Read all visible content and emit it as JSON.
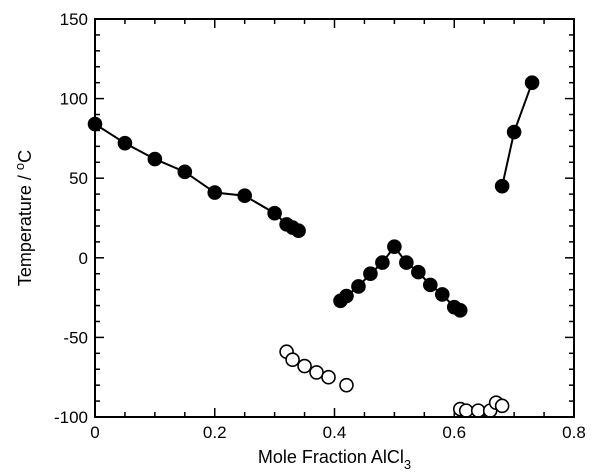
{
  "chart_data": {
    "type": "scatter",
    "title": "",
    "xlabel": {
      "main": "Mole Fraction AlCl",
      "sub": "3"
    },
    "ylabel": {
      "main": "Temperature / ",
      "sup": "o",
      "tail": "C"
    },
    "xlim": [
      0,
      0.8
    ],
    "ylim": [
      -100,
      150
    ],
    "x_ticks": [
      0,
      0.2,
      0.4,
      0.6,
      0.8
    ],
    "x_tick_labels": [
      "0",
      "0.2",
      "0.4",
      "0.6",
      "0.8"
    ],
    "y_ticks": [
      -100,
      -50,
      0,
      50,
      100,
      150
    ],
    "y_tick_labels": [
      "-100",
      "-50",
      "0",
      "50",
      "100",
      "150"
    ],
    "grid": false,
    "series": [
      {
        "marker": "filled-circle",
        "connected": true,
        "x": [
          0,
          0.05,
          0.1,
          0.15,
          0.2,
          0.25,
          0.3,
          0.32,
          0.33,
          0.34
        ],
        "y": [
          84,
          72,
          62,
          54,
          41,
          39,
          28,
          21,
          19,
          17
        ]
      },
      {
        "marker": "filled-circle",
        "connected": true,
        "x": [
          0.41,
          0.42,
          0.44,
          0.46,
          0.48,
          0.5,
          0.52,
          0.54,
          0.56,
          0.58,
          0.6,
          0.61
        ],
        "y": [
          -27,
          -24,
          -18,
          -10,
          -3,
          7,
          -3,
          -9,
          -17,
          -23,
          -31,
          -33
        ]
      },
      {
        "marker": "filled-circle",
        "connected": true,
        "x": [
          0.68,
          0.7,
          0.73
        ],
        "y": [
          45,
          79,
          110
        ]
      },
      {
        "marker": "open-circle",
        "connected": false,
        "x": [
          0.32,
          0.33,
          0.35,
          0.37,
          0.39,
          0.42
        ],
        "y": [
          -59,
          -64,
          -68,
          -72,
          -75,
          -80
        ]
      },
      {
        "marker": "open-circle",
        "connected": false,
        "x": [
          0.61,
          0.62,
          0.64,
          0.66,
          0.67,
          0.68
        ],
        "y": [
          -95,
          -96,
          -96,
          -96,
          -91,
          -93
        ]
      }
    ]
  }
}
